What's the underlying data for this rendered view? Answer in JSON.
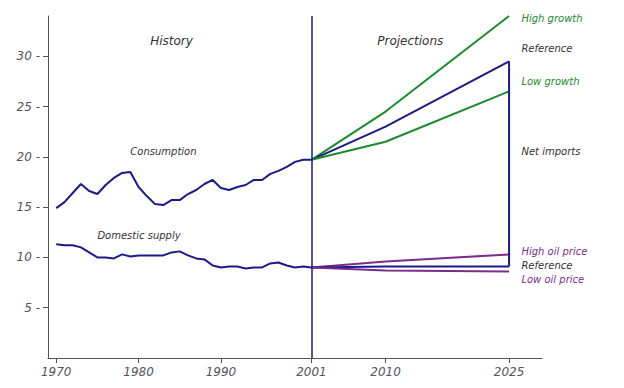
{
  "chart_data": {
    "type": "line",
    "xlim": [
      1969,
      2029
    ],
    "xticks": [
      1970,
      1980,
      1990,
      2001,
      2010,
      2025
    ],
    "ylim": [
      0,
      34
    ],
    "yticks": [
      {
        "value": 5,
        "label": "5 -"
      },
      {
        "value": 10,
        "label": "10 -"
      },
      {
        "value": 15,
        "label": "15 -"
      },
      {
        "value": 20,
        "label": "20 -"
      },
      {
        "value": 25,
        "label": "25 -"
      },
      {
        "value": 30,
        "label": "30 -"
      }
    ],
    "grid": false,
    "series": [
      {
        "color": "#1a1a8c",
        "x": [
          1970,
          1971,
          1972,
          1973,
          1974,
          1975,
          1976,
          1977,
          1978,
          1979,
          1980,
          1981,
          1982,
          1983,
          1984,
          1985,
          1986,
          1987,
          1988,
          1989,
          1990,
          1991,
          1992,
          1993,
          1994,
          1995,
          1996,
          1997,
          1998,
          1999,
          2000,
          2001
        ],
        "values": [
          14.9,
          15.5,
          16.4,
          17.3,
          16.6,
          16.3,
          17.2,
          17.9,
          18.4,
          18.5,
          17.0,
          16.1,
          15.3,
          15.2,
          15.7,
          15.7,
          16.3,
          16.7,
          17.3,
          17.7,
          16.9,
          16.7,
          17.0,
          17.2,
          17.7,
          17.7,
          18.3,
          18.6,
          19.0,
          19.5,
          19.7,
          19.7
        ]
      },
      {
        "color": "#1a1a8c",
        "x": [
          1970,
          1971,
          1972,
          1973,
          1974,
          1975,
          1976,
          1977,
          1978,
          1979,
          1980,
          1981,
          1982,
          1983,
          1984,
          1985,
          1986,
          1987,
          1988,
          1989,
          1990,
          1991,
          1992,
          1993,
          1994,
          1995,
          1996,
          1997,
          1998,
          1999,
          2000,
          2001
        ],
        "values": [
          11.3,
          11.2,
          11.2,
          11.0,
          10.5,
          10.0,
          10.0,
          9.9,
          10.3,
          10.1,
          10.2,
          10.2,
          10.2,
          10.2,
          10.5,
          10.6,
          10.2,
          9.9,
          9.8,
          9.2,
          9.0,
          9.1,
          9.1,
          8.9,
          9.0,
          9.0,
          9.4,
          9.5,
          9.2,
          9.0,
          9.1,
          9.0
        ]
      },
      {
        "color": "#1a8c2a",
        "x": [
          2001,
          2010,
          2025
        ],
        "values": [
          19.7,
          24.5,
          34.0
        ]
      },
      {
        "color": "#1a1a8c",
        "x": [
          2001,
          2010,
          2025
        ],
        "values": [
          19.7,
          23.0,
          29.5
        ]
      },
      {
        "color": "#1a8c2a",
        "x": [
          2001,
          2010,
          2025
        ],
        "values": [
          19.7,
          21.5,
          26.5
        ]
      },
      {
        "color": "#7b2d8b",
        "x": [
          2001,
          2010,
          2025
        ],
        "values": [
          9.0,
          9.6,
          10.3
        ]
      },
      {
        "color": "#1a1a8c",
        "x": [
          2001,
          2010,
          2025
        ],
        "values": [
          9.0,
          9.1,
          9.1
        ]
      },
      {
        "color": "#7b2d8b",
        "x": [
          2001,
          2010,
          2025
        ],
        "values": [
          9.0,
          8.7,
          8.6
        ]
      },
      {
        "color": "#1a1a8c",
        "x": [
          2025,
          2025
        ],
        "values": [
          9.1,
          29.5
        ]
      }
    ],
    "vlines": [
      {
        "x": 2001,
        "color": "#1a1a8c"
      }
    ],
    "period_labels": [
      {
        "text": "History",
        "x": 1984,
        "y": 31.5
      },
      {
        "text": "Projections",
        "x": 2013,
        "y": 31.5
      }
    ],
    "annotations": [
      {
        "text": "Consumption",
        "x": 1979,
        "y": 20.5
      },
      {
        "text": "Domestic supply",
        "x": 1975,
        "y": 12.2
      },
      {
        "text": "High growth",
        "x": 2026.5,
        "y": 33.8,
        "color": "#1a8c2a"
      },
      {
        "text": "Reference",
        "x": 2026.5,
        "y": 30.8
      },
      {
        "text": "Low growth",
        "x": 2026.5,
        "y": 27.5,
        "color": "#1a8c2a"
      },
      {
        "text": "Net imports",
        "x": 2026.5,
        "y": 20.5
      },
      {
        "text": "High oil price",
        "x": 2026.5,
        "y": 10.6,
        "color": "#7b2d8b"
      },
      {
        "text": "Reference",
        "x": 2026.5,
        "y": 9.2
      },
      {
        "text": "Low oil price",
        "x": 2026.5,
        "y": 7.8,
        "color": "#7b2d8b"
      }
    ]
  }
}
